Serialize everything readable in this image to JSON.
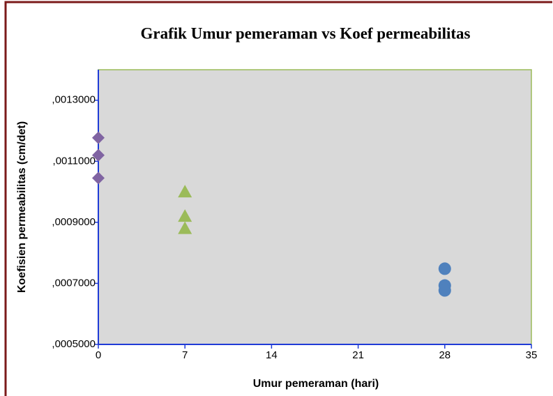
{
  "chart_data": {
    "type": "scatter",
    "title": "Grafik Umur pemeraman vs Koef permeabilitas",
    "x_label": "Umur pemeraman (hari)",
    "y_label": "Koefisien permeabilitas (cm/det)",
    "xlim": [
      0,
      35
    ],
    "xticks": [
      0,
      7,
      14,
      21,
      28,
      35
    ],
    "ylim": [
      0.0005,
      0.0014
    ],
    "yticks": [
      {
        "value": 0.0005,
        "label": ",0005000"
      },
      {
        "value": 0.0007,
        "label": ",0007000"
      },
      {
        "value": 0.0009,
        "label": ",0009000"
      },
      {
        "value": 0.0011,
        "label": ",0011000"
      },
      {
        "value": 0.0013,
        "label": ",0013000"
      }
    ],
    "grid": false,
    "series": [
      {
        "color": "#8064a2",
        "marker": "diamond",
        "x": [
          0,
          0,
          0
        ],
        "values": [
          0.001177,
          0.00112,
          0.001045
        ]
      },
      {
        "color": "#9bbb59",
        "marker": "triangle",
        "x": [
          7,
          7,
          7
        ],
        "values": [
          0.001,
          0.00092,
          0.00088
        ]
      },
      {
        "color": "#4f81bd",
        "marker": "circle",
        "x": [
          28,
          28,
          28
        ],
        "values": [
          0.000748,
          0.000693,
          0.000677
        ]
      }
    ]
  }
}
